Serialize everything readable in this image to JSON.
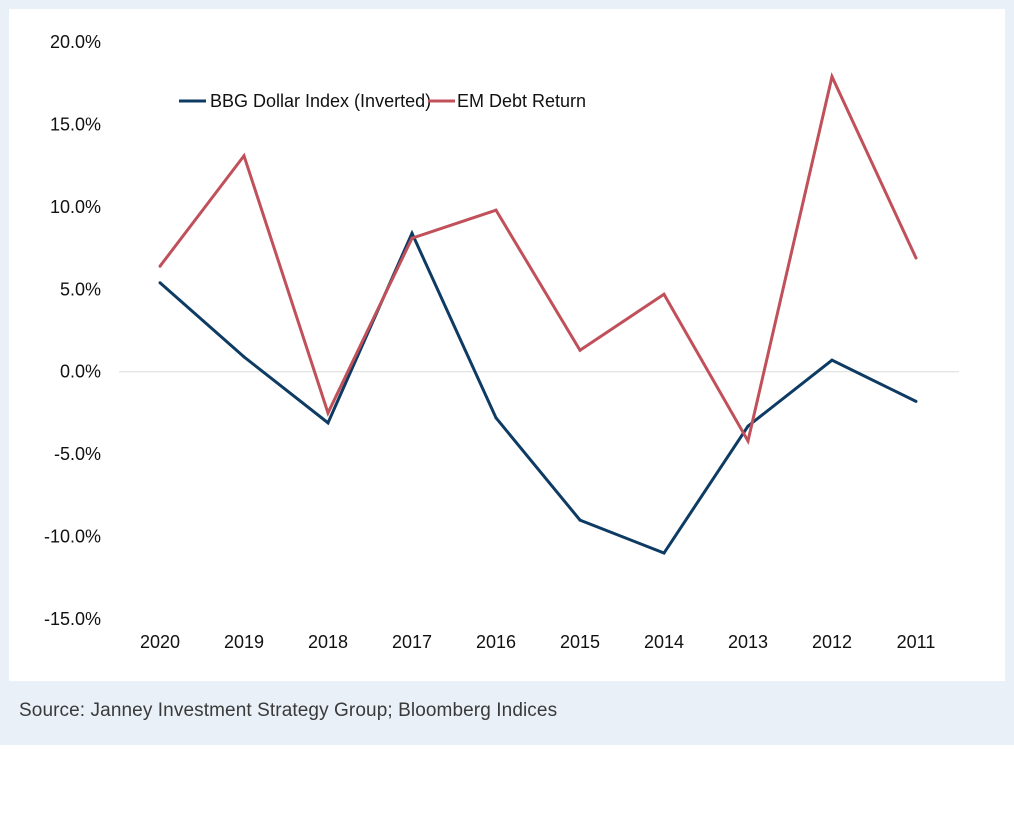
{
  "chart_data": {
    "type": "line",
    "title": "",
    "xlabel": "",
    "ylabel": "",
    "categories": [
      "2020",
      "2019",
      "2018",
      "2017",
      "2016",
      "2015",
      "2014",
      "2013",
      "2012",
      "2011"
    ],
    "ylim": [
      -15,
      20
    ],
    "yticks": [
      20,
      15,
      10,
      5,
      0,
      -5,
      -10,
      -15
    ],
    "ytick_labels": [
      "20.0%",
      "15.0%",
      "10.0%",
      "5.0%",
      "0.0%",
      "-5.0%",
      "-10.0%",
      "-15.0%"
    ],
    "legend_position": "top-left",
    "series": [
      {
        "name": "BBG Dollar Index (Inverted)",
        "color": "#0d3b63",
        "values": [
          5.4,
          0.9,
          -3.1,
          8.4,
          -2.8,
          -9.0,
          -11.0,
          -3.3,
          0.7,
          -1.8
        ]
      },
      {
        "name": "EM Debt Return",
        "color": "#c0505a",
        "values": [
          6.4,
          13.1,
          -2.5,
          8.1,
          9.8,
          1.3,
          4.7,
          -4.2,
          17.9,
          6.9
        ]
      }
    ],
    "zero_line_color": "#dcdcdc"
  },
  "footer": {
    "source": "Source: Janney Investment Strategy Group; Bloomberg Indices"
  }
}
